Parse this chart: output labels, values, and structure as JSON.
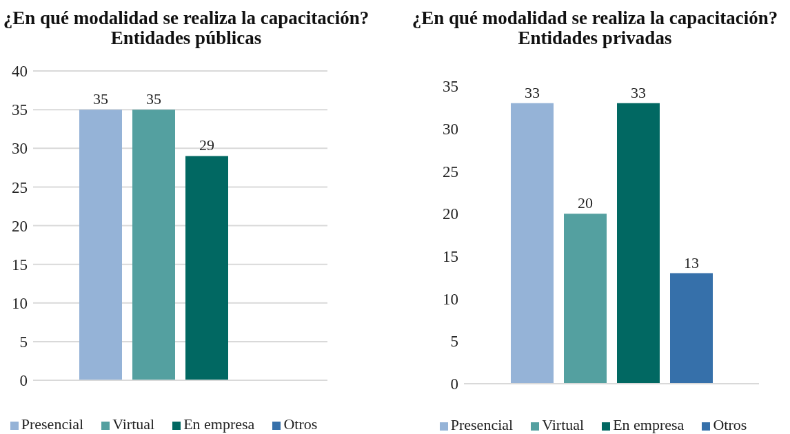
{
  "chart_data": [
    {
      "type": "bar",
      "title": "¿En qué modalidad se realiza la capacitación?",
      "subtitle": "Entidades públicas",
      "categories": [
        null
      ],
      "series": [
        {
          "name": "Presencial",
          "color": "#95b3d7",
          "values": [
            35
          ]
        },
        {
          "name": "Virtual",
          "color": "#54a0a0",
          "values": [
            35
          ]
        },
        {
          "name": "En empresa",
          "color": "#016862",
          "values": [
            29
          ]
        },
        {
          "name": "Otros",
          "color": "#3670aa",
          "values": [
            null
          ]
        }
      ],
      "ylim": [
        0,
        40
      ],
      "yticks": [
        0,
        5,
        10,
        15,
        20,
        25,
        30,
        35,
        40
      ],
      "grid": "y",
      "legend": "bottom",
      "data_labels": true
    },
    {
      "type": "bar",
      "title": "¿En qué modalidad se realiza la capacitación?",
      "subtitle": "Entidades privadas",
      "categories": [
        null
      ],
      "series": [
        {
          "name": "Presencial",
          "color": "#95b3d7",
          "values": [
            33
          ]
        },
        {
          "name": "Virtual",
          "color": "#54a0a0",
          "values": [
            20
          ]
        },
        {
          "name": "En empresa",
          "color": "#016862",
          "values": [
            33
          ]
        },
        {
          "name": "Otros",
          "color": "#3670aa",
          "values": [
            13
          ]
        }
      ],
      "ylim": [
        0,
        35
      ],
      "yticks": [
        0,
        5,
        10,
        15,
        20,
        25,
        30,
        35
      ],
      "legend": "bottom",
      "data_labels": true
    }
  ]
}
